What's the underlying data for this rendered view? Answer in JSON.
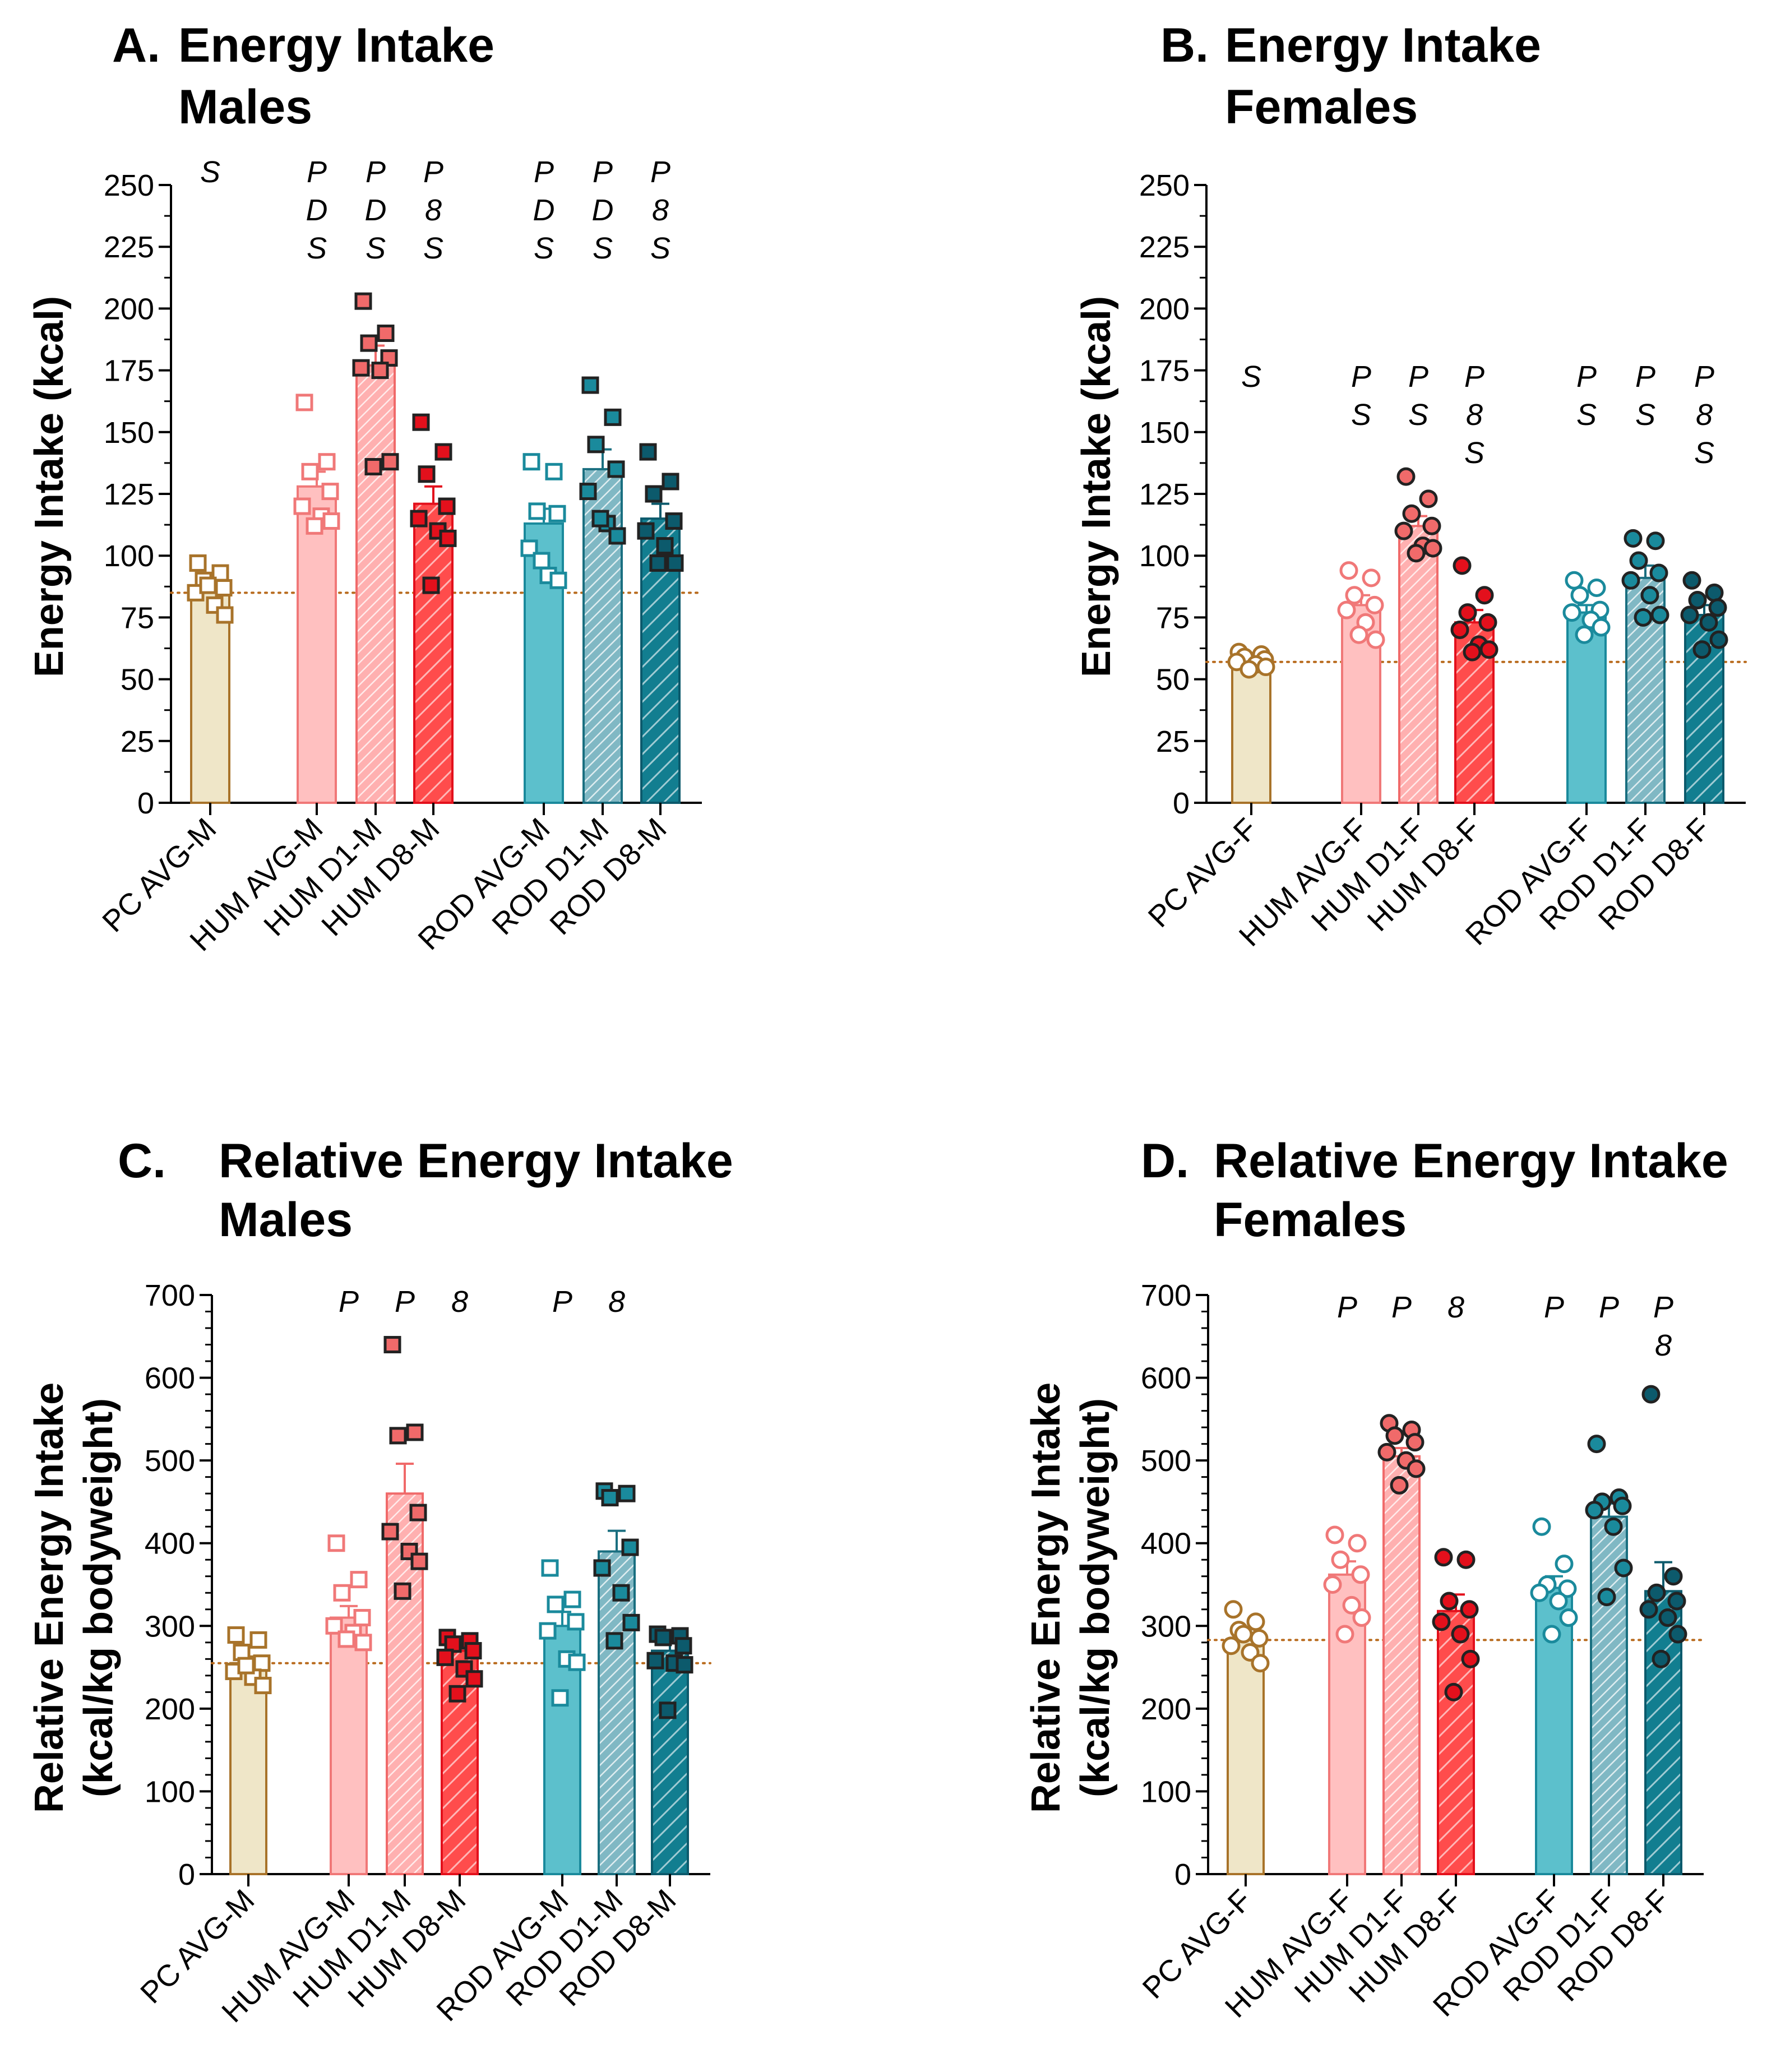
{
  "colors": {
    "pc": "#a8732a",
    "pc_fill": "#efe6c8",
    "hum_light": "#f07878",
    "hum_fill_light": "#ffc0c0",
    "hum_mid": "#f06a6a",
    "hum_fill_mid": "#ffb0b0",
    "hum_dark": "#e3101c",
    "hum_fill_dark": "#ff4c4c",
    "rod_light": "#1a8a9c",
    "rod_fill_light": "#5cc0cc",
    "rod_mid": "#1a6f80",
    "rod_fill_mid": "#80b8c4",
    "rod_dark": "#0c5a6c",
    "rod_fill_dark": "#127e90",
    "ref_line": "#b86a1c"
  },
  "chart_data": [
    {
      "id": "A",
      "type": "bar",
      "panel_label": "A.",
      "title": [
        "Energy Intake",
        "Males"
      ],
      "ylabel": [
        "Energy Intake (kcal)"
      ],
      "ylim": [
        0,
        250
      ],
      "yticks": [
        "0",
        "25",
        "50",
        "75",
        "100",
        "125",
        "150",
        "175",
        "200",
        "225",
        "250"
      ],
      "reference_line": 85,
      "marker": "square",
      "categories": [
        "PC AVG-M",
        "HUM AVG-M",
        "HUM D1-M",
        "HUM D8-M",
        "ROD AVG-M",
        "ROD D1-M",
        "ROD D8-M"
      ],
      "series": [
        {
          "name": "PC AVG-M",
          "mean": 86,
          "sem": 3,
          "points": [
            97,
            93,
            90,
            87,
            85,
            80,
            76,
            88
          ]
        },
        {
          "name": "HUM AVG-M",
          "mean": 128,
          "sem": 6,
          "points": [
            162,
            138,
            134,
            126,
            120,
            116,
            114,
            112
          ]
        },
        {
          "name": "HUM D1-M",
          "mean": 177,
          "sem": 8,
          "points": [
            203,
            190,
            186,
            180,
            176,
            175,
            138,
            136
          ]
        },
        {
          "name": "HUM D8-M",
          "mean": 121,
          "sem": 7,
          "points": [
            154,
            142,
            133,
            120,
            115,
            110,
            107,
            88
          ]
        },
        {
          "name": "ROD AVG-M",
          "mean": 113,
          "sem": 6,
          "points": [
            138,
            134,
            118,
            117,
            103,
            92,
            90,
            98
          ]
        },
        {
          "name": "ROD D1-M",
          "mean": 135,
          "sem": 8,
          "points": [
            169,
            156,
            145,
            135,
            126,
            113,
            108,
            115
          ]
        },
        {
          "name": "ROD D8-M",
          "mean": 115,
          "sem": 6,
          "points": [
            142,
            130,
            125,
            114,
            110,
            104,
            97,
            97
          ]
        }
      ],
      "annotations": [
        [
          "S"
        ],
        [
          "P",
          "D",
          "S"
        ],
        [
          "P",
          "D",
          "S"
        ],
        [
          "P",
          "8",
          "S"
        ],
        [
          "P",
          "D",
          "S"
        ],
        [
          "P",
          "D",
          "S"
        ],
        [
          "P",
          "8",
          "S"
        ]
      ]
    },
    {
      "id": "B",
      "type": "bar",
      "panel_label": "B.",
      "title": [
        "Energy Intake",
        "Females"
      ],
      "ylabel": [
        "Energy Intake (kcal)"
      ],
      "ylim": [
        0,
        250
      ],
      "yticks": [
        "0",
        "25",
        "50",
        "75",
        "100",
        "125",
        "150",
        "175",
        "200",
        "225",
        "250"
      ],
      "reference_line": 57,
      "marker": "circle",
      "categories": [
        "PC AVG-F",
        "HUM AVG-F",
        "HUM D1-F",
        "HUM D8-F",
        "ROD AVG-F",
        "ROD D1-F",
        "ROD D8-F"
      ],
      "series": [
        {
          "name": "PC AVG-F",
          "mean": 57,
          "sem": 1,
          "points": [
            61,
            60,
            59,
            58,
            57,
            56,
            55,
            54
          ]
        },
        {
          "name": "HUM AVG-F",
          "mean": 80,
          "sem": 4,
          "points": [
            94,
            91,
            84,
            80,
            78,
            73,
            66,
            68
          ]
        },
        {
          "name": "HUM D1-F",
          "mean": 112,
          "sem": 4,
          "points": [
            132,
            123,
            117,
            112,
            110,
            104,
            103,
            101
          ]
        },
        {
          "name": "HUM D8-F",
          "mean": 73,
          "sem": 5,
          "points": [
            96,
            84,
            77,
            73,
            70,
            64,
            62,
            61
          ]
        },
        {
          "name": "ROD AVG-F",
          "mean": 77,
          "sem": 3,
          "points": [
            90,
            87,
            84,
            78,
            77,
            74,
            71,
            68
          ]
        },
        {
          "name": "ROD D1-F",
          "mean": 91,
          "sem": 5,
          "points": [
            107,
            106,
            98,
            93,
            90,
            84,
            76,
            75
          ]
        },
        {
          "name": "ROD D8-F",
          "mean": 76,
          "sem": 4,
          "points": [
            90,
            85,
            82,
            79,
            76,
            73,
            66,
            62
          ]
        }
      ],
      "annotations": [
        [
          "S"
        ],
        [
          "P",
          "S"
        ],
        [
          "P",
          "S"
        ],
        [
          "P",
          "8",
          "S"
        ],
        [
          "P",
          "S"
        ],
        [
          "P",
          "S"
        ],
        [
          "P",
          "8",
          "S"
        ]
      ]
    },
    {
      "id": "C",
      "type": "bar",
      "panel_label": "C.",
      "title": [
        "Relative Energy Intake",
        "Males"
      ],
      "ylabel": [
        "Relative Energy Intake",
        "(kcal/kg bodyweight)"
      ],
      "ylim": [
        0,
        700
      ],
      "yticks": [
        "0",
        "100",
        "200",
        "300",
        "400",
        "500",
        "600",
        "700"
      ],
      "reference_line": 255,
      "marker": "square",
      "categories": [
        "PC AVG-M",
        "HUM AVG-M",
        "HUM D1-M",
        "HUM D8-M",
        "ROD AVG-M",
        "ROD D1-M",
        "ROD D8-M"
      ],
      "series": [
        {
          "name": "PC AVG-M",
          "mean": 255,
          "sem": 8,
          "points": [
            289,
            283,
            268,
            255,
            245,
            238,
            228,
            252
          ]
        },
        {
          "name": "HUM AVG-M",
          "mean": 310,
          "sem": 14,
          "points": [
            400,
            356,
            340,
            310,
            300,
            292,
            280,
            284
          ]
        },
        {
          "name": "HUM D1-M",
          "mean": 460,
          "sem": 36,
          "points": [
            640,
            534,
            530,
            437,
            414,
            390,
            378,
            342
          ]
        },
        {
          "name": "HUM D8-M",
          "mean": 270,
          "sem": 8,
          "points": [
            286,
            282,
            278,
            270,
            262,
            248,
            236,
            218
          ]
        },
        {
          "name": "ROD AVG-M",
          "mean": 300,
          "sem": 17,
          "points": [
            370,
            332,
            326,
            305,
            294,
            260,
            256,
            213
          ]
        },
        {
          "name": "ROD D1-M",
          "mean": 390,
          "sem": 25,
          "points": [
            463,
            460,
            455,
            395,
            370,
            340,
            304,
            282
          ]
        },
        {
          "name": "ROD D8-M",
          "mean": 270,
          "sem": 11,
          "points": [
            290,
            288,
            286,
            276,
            258,
            255,
            253,
            198
          ]
        }
      ],
      "annotations": [
        [],
        [
          "P"
        ],
        [
          "P"
        ],
        [
          "8"
        ],
        [
          "P"
        ],
        [
          "8"
        ],
        []
      ]
    },
    {
      "id": "D",
      "type": "bar",
      "panel_label": "D.",
      "title": [
        "Relative Energy Intake",
        "Females"
      ],
      "ylabel": [
        "Relative Energy Intake",
        "(kcal/kg bodyweight)"
      ],
      "ylim": [
        0,
        700
      ],
      "yticks": [
        "0",
        "100",
        "200",
        "300",
        "400",
        "500",
        "600",
        "700"
      ],
      "reference_line": 283,
      "marker": "circle",
      "categories": [
        "PC AVG-F",
        "HUM AVG-F",
        "HUM D1-F",
        "HUM D8-F",
        "ROD AVG-F",
        "ROD D1-F",
        "ROD D8-F"
      ],
      "series": [
        {
          "name": "PC AVG-F",
          "mean": 283,
          "sem": 8,
          "points": [
            320,
            305,
            295,
            285,
            276,
            268,
            255,
            290
          ]
        },
        {
          "name": "HUM AVG-F",
          "mean": 362,
          "sem": 16,
          "points": [
            410,
            400,
            380,
            362,
            350,
            325,
            310,
            290
          ]
        },
        {
          "name": "HUM D1-F",
          "mean": 505,
          "sem": 10,
          "points": [
            545,
            537,
            530,
            522,
            510,
            500,
            490,
            470
          ]
        },
        {
          "name": "HUM D8-F",
          "mean": 318,
          "sem": 20,
          "points": [
            383,
            380,
            330,
            320,
            305,
            290,
            260,
            220
          ]
        },
        {
          "name": "ROD AVG-F",
          "mean": 346,
          "sem": 14,
          "points": [
            420,
            375,
            350,
            345,
            340,
            330,
            310,
            290
          ]
        },
        {
          "name": "ROD D1-F",
          "mean": 432,
          "sem": 16,
          "points": [
            520,
            455,
            450,
            445,
            440,
            420,
            370,
            335
          ]
        },
        {
          "name": "ROD D8-F",
          "mean": 342,
          "sem": 35,
          "points": [
            580,
            360,
            340,
            330,
            320,
            310,
            290,
            260
          ]
        }
      ],
      "annotations": [
        [],
        [
          "P"
        ],
        [
          "P"
        ],
        [
          "8"
        ],
        [
          "P"
        ],
        [
          "P"
        ],
        [
          "P",
          "8"
        ]
      ]
    }
  ]
}
